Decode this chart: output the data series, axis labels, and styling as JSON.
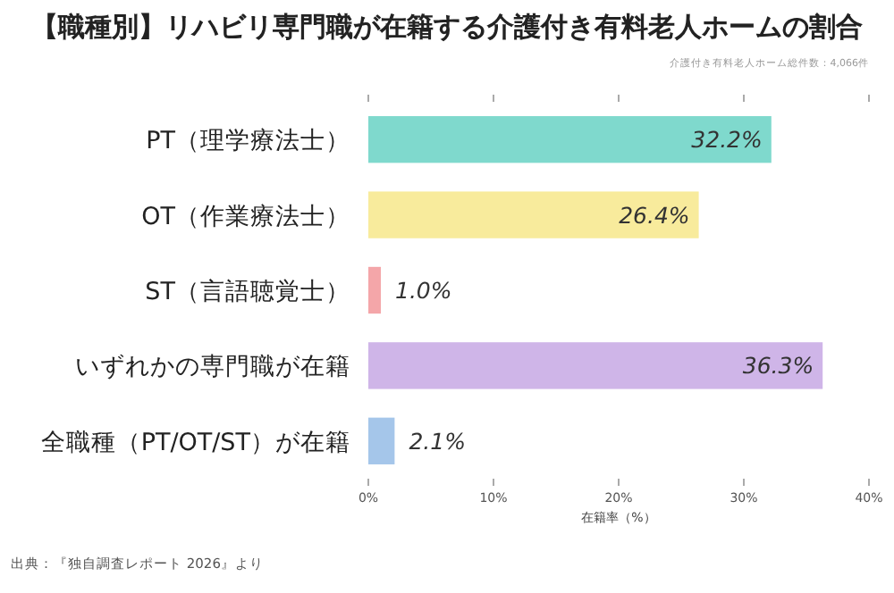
{
  "chart_data": {
    "type": "bar",
    "orientation": "horizontal",
    "title": "【職種別】リハビリ専門職が在籍する介護付き有料老人ホームの割合",
    "subtitle": "介護付き有料老人ホーム総件数：4,066件",
    "xlabel": "在籍率（%）",
    "categories": [
      "PT（理学療法士）",
      "OT（作業療法士）",
      "ST（言語聴覚士）",
      "いずれかの専門職が在籍",
      "全職種（PT/OT/ST）が在籍"
    ],
    "values": [
      32.2,
      26.4,
      1.0,
      36.3,
      2.1
    ],
    "colors": [
      "#7fd9cd",
      "#f8eb9c",
      "#f4a6a9",
      "#cfb5e8",
      "#a5c6ea"
    ],
    "value_labels": [
      "32.2%",
      "26.4%",
      "1.0%",
      "36.3%",
      "2.1%"
    ],
    "xlim": [
      0,
      40
    ],
    "xticks": [
      {
        "value": 0,
        "label": "0%"
      },
      {
        "value": 10,
        "label": "10%"
      },
      {
        "value": 20,
        "label": "20%"
      },
      {
        "value": 30,
        "label": "30%"
      },
      {
        "value": 40,
        "label": "40%"
      }
    ],
    "grid": false,
    "annotations": [
      "出典：『独自調査レポート 2026』より"
    ]
  }
}
